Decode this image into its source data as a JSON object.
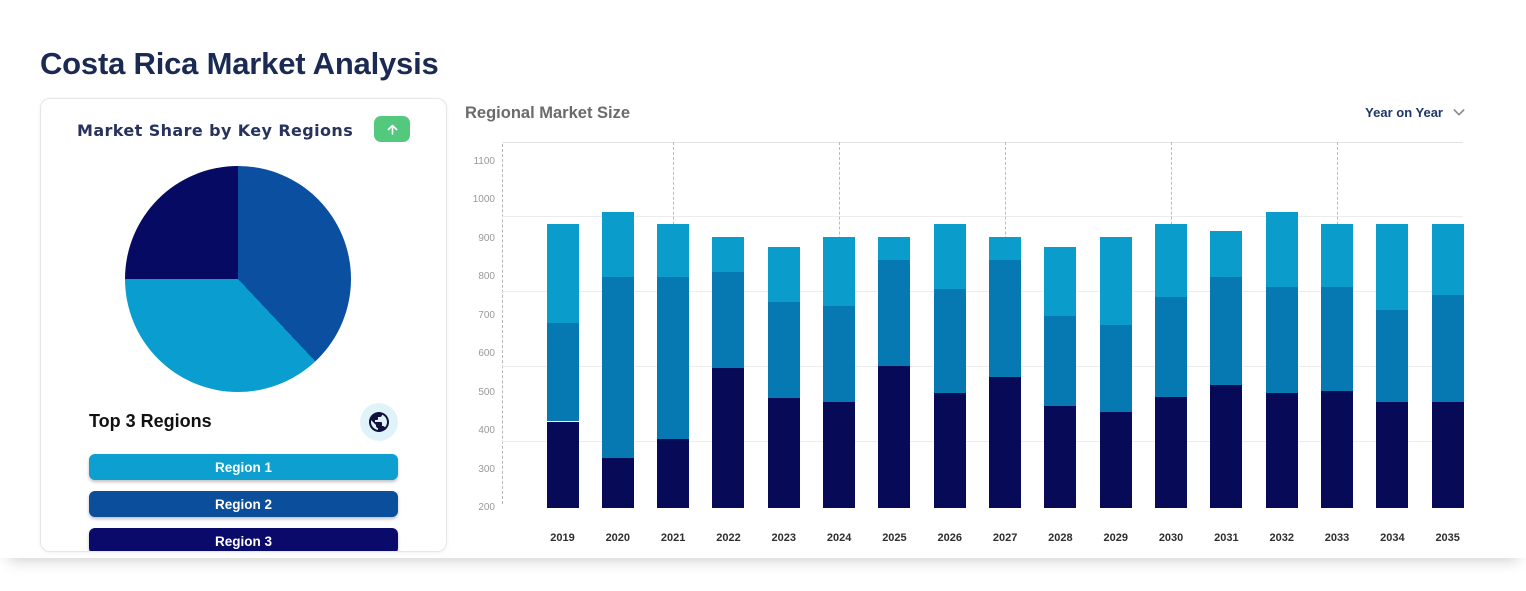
{
  "header": {
    "title": "Costa Rica Market Analysis"
  },
  "market_share_card": {
    "title": "Market Share by Key Regions",
    "expand_icon": "arrow-up-icon",
    "subheading": "Top 3 Regions",
    "badge_icon": "globe-icon",
    "regions": [
      {
        "label": "Region 1",
        "color": "#0c9fcf"
      },
      {
        "label": "Region 2",
        "color": "#0b4e9b"
      },
      {
        "label": "Region 3",
        "color": "#0a0a6b"
      }
    ],
    "accent_green": "#52c97d"
  },
  "chart_header": {
    "title": "Regional Market Size",
    "range_selector": "Year on Year",
    "range_selector_icon": "chevron-down-icon"
  },
  "chart_data": [
    {
      "type": "pie",
      "title": "Market Share by Key Regions",
      "direction": "clockwise",
      "start_angle_deg": 0,
      "legend_position": "none",
      "slices": [
        {
          "label": "Region 2",
          "value": 38,
          "color": "#0b4fa0"
        },
        {
          "label": "Region 1",
          "value": 37,
          "color": "#0a9dd0"
        },
        {
          "label": "Region 3",
          "value": 25,
          "color": "#060a63"
        }
      ]
    },
    {
      "type": "bar",
      "stacked": true,
      "title": "Regional Market Size",
      "xlabel": "",
      "ylabel": "",
      "baseline": 200,
      "ylim": [
        200,
        1100
      ],
      "yticks": [
        1100,
        1000,
        900,
        800,
        700,
        600,
        500,
        400,
        300,
        200
      ],
      "gridline_values": [
        960,
        765,
        570,
        375
      ],
      "dashed_guide_categories": [
        2021,
        2024,
        2027,
        2030,
        2033
      ],
      "legend_position": "none",
      "categories": [
        2019,
        2020,
        2021,
        2022,
        2023,
        2024,
        2025,
        2026,
        2027,
        2028,
        2029,
        2030,
        2031,
        2032,
        2033,
        2034,
        2035
      ],
      "series": [
        {
          "name": "Region 3",
          "color": "#070a56",
          "values": [
            225,
            130,
            180,
            365,
            285,
            275,
            370,
            300,
            340,
            265,
            250,
            290,
            320,
            300,
            305,
            275,
            275
          ]
        },
        {
          "name": "Region 2",
          "color": "#0679b2",
          "values": [
            255,
            470,
            420,
            250,
            250,
            250,
            275,
            270,
            305,
            235,
            225,
            260,
            280,
            275,
            270,
            240,
            280
          ]
        },
        {
          "name": "Region 1",
          "color": "#0a9cca",
          "values": [
            260,
            170,
            140,
            90,
            145,
            180,
            60,
            170,
            60,
            180,
            230,
            190,
            120,
            195,
            165,
            225,
            185
          ]
        }
      ]
    }
  ]
}
